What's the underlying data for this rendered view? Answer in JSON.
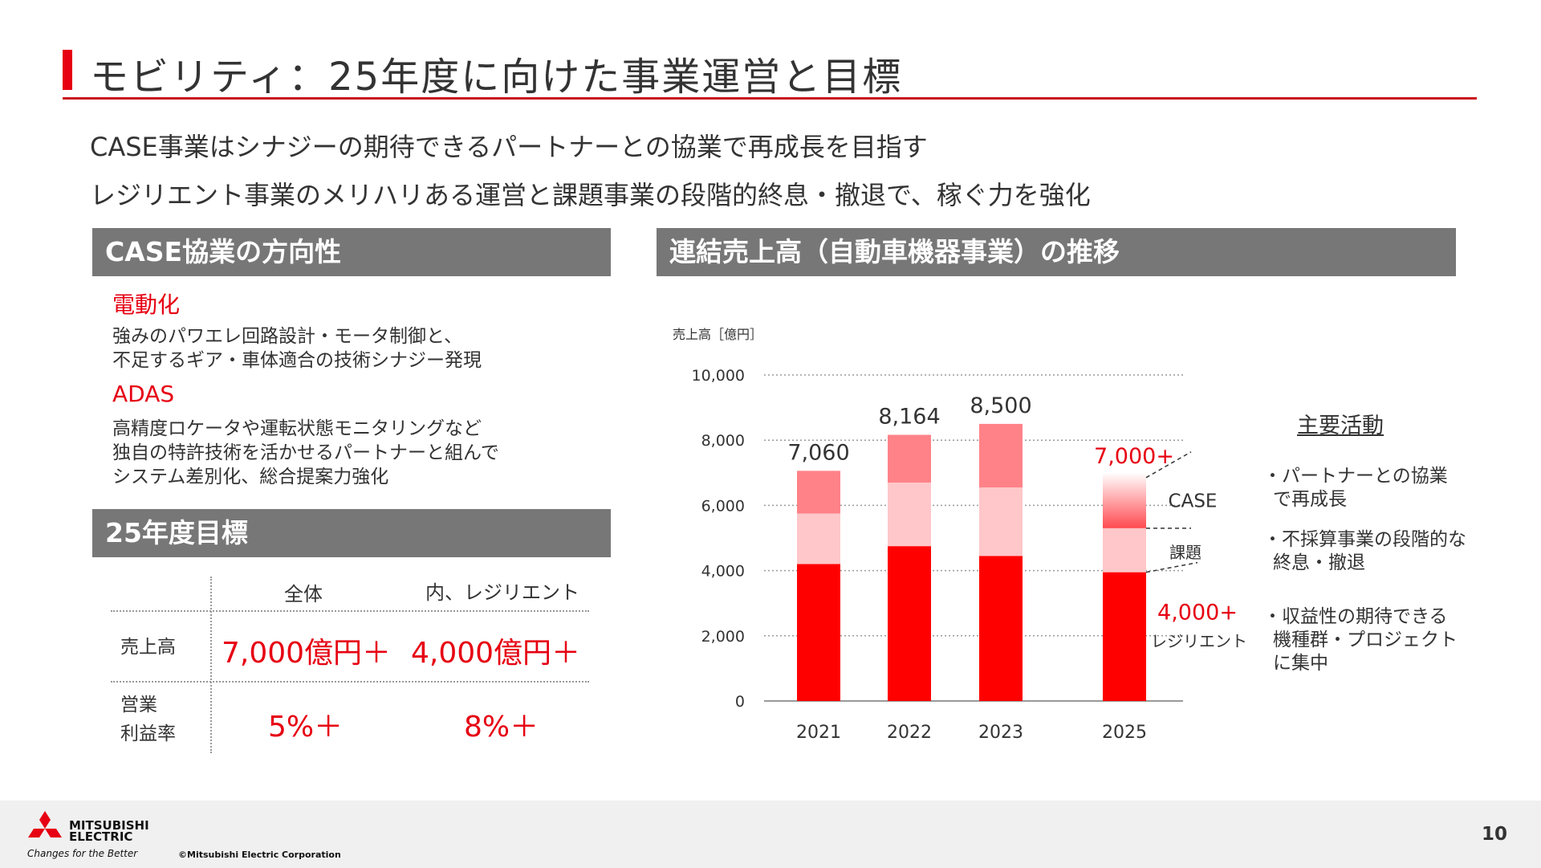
{
  "header": {
    "title": "モビリティ：25年度に向けた事業運営と目標",
    "lead1": "CASE事業はシナジーの期待できるパートナーとの協業で再成長を目指す",
    "lead2": "レジリエント事業のメリハリある運営と課題事業の段階的終息・撤退で、稼ぐ力を強化"
  },
  "case": {
    "heading": "CASE協業の方向性",
    "items": [
      {
        "title": "電動化",
        "line1": "強みのパワエレ回路設計・モータ制御と、",
        "line2": "不足するギア・車体適合の技術シナジー発現",
        "line3": ""
      },
      {
        "title": "ADAS",
        "line1": "高精度ロケータや運転状態モニタリングなど",
        "line2": "独自の特許技術を活かせるパートナーと組んで",
        "line3": "システム差別化、総合提案力強化"
      }
    ]
  },
  "targets": {
    "heading": "25年度目標",
    "col_all": "全体",
    "col_resilient": "内、レジリエント",
    "row_sales": "売上高",
    "row_margin_l1": "営業",
    "row_margin_l2": "利益率",
    "sales_all": "7,000億円＋",
    "sales_resilient": "4,000億円＋",
    "margin_all": "5%＋",
    "margin_resilient": "8%＋"
  },
  "chart_section": {
    "heading": "連結売上高（自動車機器事業）の推移"
  },
  "chart_data": {
    "type": "bar",
    "stacked": true,
    "ylabel": "売上高［億円］",
    "ylim": [
      0,
      10000
    ],
    "yticks": [
      "10,000",
      "8,000",
      "6,000",
      "4,000",
      "2,000",
      "0"
    ],
    "categories": [
      "2021",
      "2022",
      "2023",
      "2025"
    ],
    "totals": [
      "7,060",
      "8,164",
      "8,500",
      "7,000+"
    ],
    "series": [
      {
        "values": [
          4200,
          4750,
          4450,
          3950
        ],
        "color": "#ff0000"
      },
      {
        "values": [
          1550,
          1950,
          2100,
          1350
        ],
        "color": "#ffc7c9"
      },
      {
        "values": [
          1310,
          1464,
          1950,
          1700
        ],
        "color": "#ff8288"
      }
    ],
    "labels_2025": {
      "case": "CASE",
      "issue": "課題",
      "resilient_value": "4,000+",
      "resilient": "レジリエント"
    },
    "grid": "dotted"
  },
  "activities": {
    "title": "主要活動",
    "items": [
      {
        "line1": "・パートナーとの協業",
        "line2": "で再成長",
        "line3": ""
      },
      {
        "line1": "・不採算事業の段階的な",
        "line2": "終息・撤退",
        "line3": ""
      },
      {
        "line1": "・収益性の期待できる",
        "line2": "機種群・プロジェクト",
        "line3": "に集中"
      }
    ]
  },
  "footer": {
    "logo_line1": "MITSUBISHI",
    "logo_line2": "ELECTRIC",
    "tagline": "Changes for the Better",
    "copyright": "©Mitsubishi Electric Corporation",
    "page": "10"
  }
}
